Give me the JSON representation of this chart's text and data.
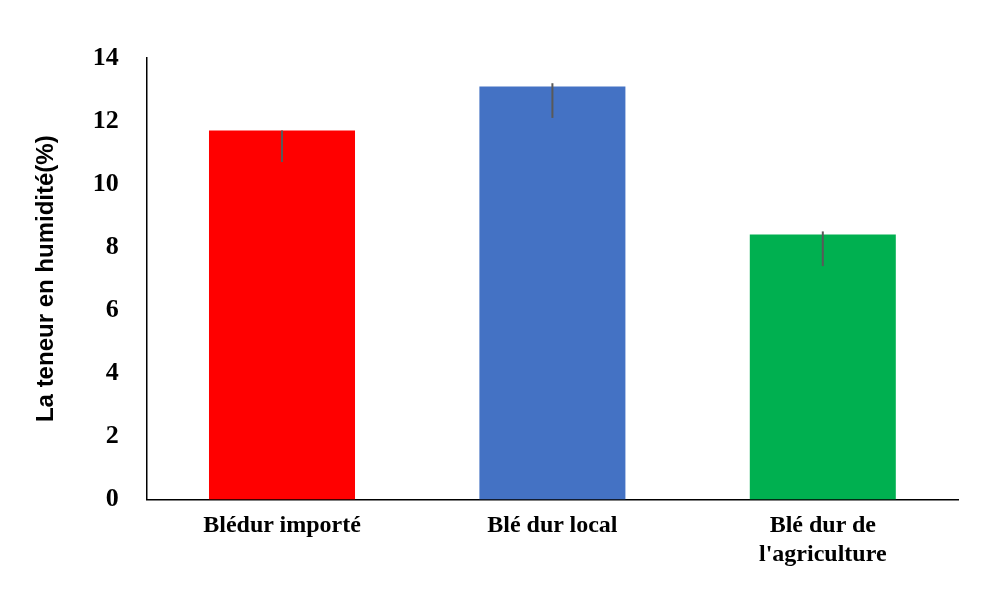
{
  "chart_data": {
    "type": "bar",
    "ylabel": "La teneur en humidité(%)",
    "categories": [
      "Blédur importé",
      "Blé dur local",
      "Blé dur de l'agriculture"
    ],
    "values": [
      11.7,
      13.1,
      8.4
    ],
    "colors": [
      "#ff0000",
      "#4472c4",
      "#00b050"
    ],
    "errors": [
      [
        10.7,
        11.7
      ],
      [
        12.1,
        13.2
      ],
      [
        7.4,
        8.5
      ]
    ],
    "ylim": [
      0,
      14
    ],
    "yticks": [
      0,
      2,
      4,
      6,
      8,
      10,
      12,
      14
    ],
    "grid": false,
    "legend": false
  }
}
